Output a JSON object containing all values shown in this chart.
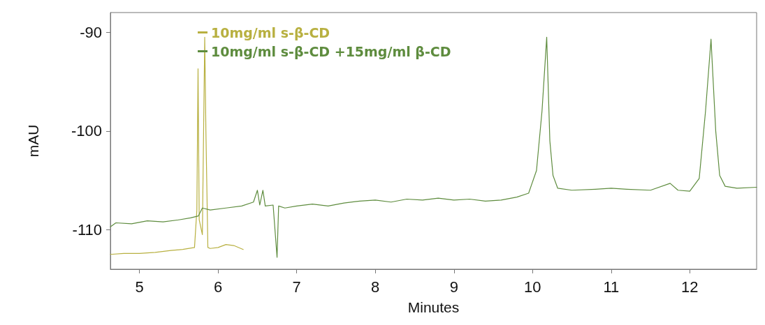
{
  "chart_data": {
    "type": "line",
    "xlabel": "Minutes",
    "ylabel": "mAU",
    "xlim": [
      4.63,
      12.85
    ],
    "ylim": [
      -114,
      -88
    ],
    "xticks": [
      5,
      6,
      7,
      8,
      9,
      10,
      11,
      12
    ],
    "yticks": [
      -110,
      -100,
      -90
    ],
    "grid": false,
    "legend": "top left",
    "marker": "none",
    "line_style": "solid",
    "series": [
      {
        "name": "10mg/ml s-β-CD",
        "color": "#b8b040",
        "x": [
          4.63,
          4.8,
          5.0,
          5.2,
          5.4,
          5.55,
          5.7,
          5.73,
          5.745,
          5.76,
          5.8,
          5.83,
          5.845,
          5.87,
          5.9,
          6.0,
          6.1,
          6.2,
          6.32
        ],
        "values": [
          -112.5,
          -112.4,
          -112.4,
          -112.3,
          -112.1,
          -112.0,
          -111.8,
          -108.0,
          -93.7,
          -109.0,
          -110.5,
          -90.5,
          -100.0,
          -111.8,
          -111.9,
          -111.8,
          -111.5,
          -111.6,
          -112.0
        ]
      },
      {
        "name": "10mg/ml s-β-CD +15mg/ml β-CD",
        "color": "#5e8c3e",
        "x": [
          4.63,
          4.7,
          4.9,
          5.1,
          5.3,
          5.5,
          5.65,
          5.75,
          5.8,
          5.9,
          6.1,
          6.3,
          6.45,
          6.5,
          6.53,
          6.57,
          6.6,
          6.7,
          6.75,
          6.77,
          6.85,
          7.0,
          7.2,
          7.4,
          7.6,
          7.8,
          8.0,
          8.2,
          8.4,
          8.6,
          8.8,
          9.0,
          9.2,
          9.4,
          9.6,
          9.8,
          9.95,
          10.05,
          10.12,
          10.18,
          10.22,
          10.26,
          10.32,
          10.5,
          10.8,
          11.0,
          11.2,
          11.5,
          11.75,
          11.85,
          12.0,
          12.12,
          12.2,
          12.27,
          12.33,
          12.38,
          12.45,
          12.6,
          12.85
        ],
        "values": [
          -109.7,
          -109.3,
          -109.4,
          -109.1,
          -109.2,
          -109.0,
          -108.8,
          -108.6,
          -107.8,
          -108.0,
          -107.8,
          -107.6,
          -107.2,
          -106.0,
          -107.5,
          -106.0,
          -107.6,
          -107.5,
          -112.8,
          -107.6,
          -107.8,
          -107.6,
          -107.4,
          -107.6,
          -107.3,
          -107.1,
          -107.0,
          -107.2,
          -106.9,
          -107.0,
          -106.8,
          -107.0,
          -106.9,
          -107.1,
          -107.0,
          -106.7,
          -106.3,
          -104.0,
          -98.0,
          -90.5,
          -101.0,
          -104.5,
          -105.8,
          -106.0,
          -105.9,
          -105.8,
          -105.9,
          -106.0,
          -105.3,
          -106.0,
          -106.1,
          -104.8,
          -98.0,
          -90.7,
          -100.0,
          -104.5,
          -105.6,
          -105.8,
          -105.7
        ]
      }
    ]
  }
}
